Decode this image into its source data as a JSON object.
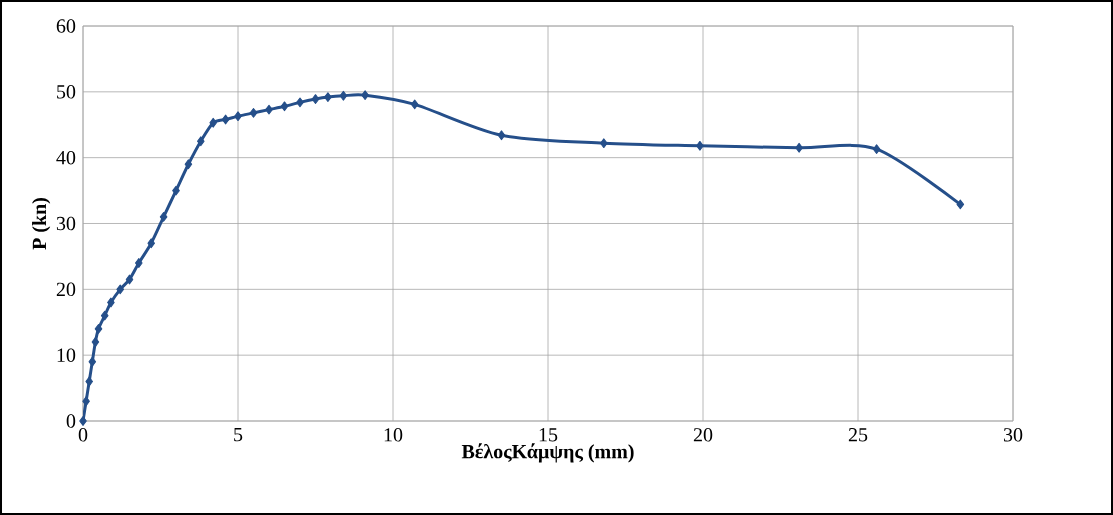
{
  "chart_data": {
    "type": "line",
    "xlabel": "ΒέλοςΚάμψης (mm)",
    "ylabel": "P (kn)",
    "x": [
      0,
      0.1,
      0.2,
      0.3,
      0.4,
      0.5,
      0.7,
      0.9,
      1.2,
      1.5,
      1.8,
      2.2,
      2.6,
      3.0,
      3.4,
      3.8,
      4.2,
      4.6,
      5.0,
      5.5,
      6.0,
      6.5,
      7.0,
      7.5,
      7.9,
      8.4,
      9.1,
      10.7,
      13.5,
      16.8,
      19.9,
      23.1,
      25.6,
      28.3
    ],
    "series": [
      {
        "color": "#254f8a",
        "values": [
          0,
          3,
          6,
          9,
          12,
          14,
          16,
          18,
          20,
          21.5,
          24,
          27,
          31,
          35,
          39,
          42.5,
          45.3,
          45.8,
          46.3,
          46.8,
          47.3,
          47.8,
          48.4,
          48.9,
          49.2,
          49.4,
          49.5,
          48.1,
          43.4,
          42.2,
          41.8,
          41.5,
          41.3,
          32.9
        ]
      }
    ],
    "xlim": [
      0,
      30
    ],
    "ylim": [
      0,
      60
    ],
    "xticks": [
      0,
      5,
      10,
      15,
      20,
      25,
      30
    ],
    "yticks": [
      0,
      10,
      20,
      30,
      40,
      50,
      60
    ],
    "grid": true,
    "marker": "diamond",
    "line_style": "solid"
  }
}
